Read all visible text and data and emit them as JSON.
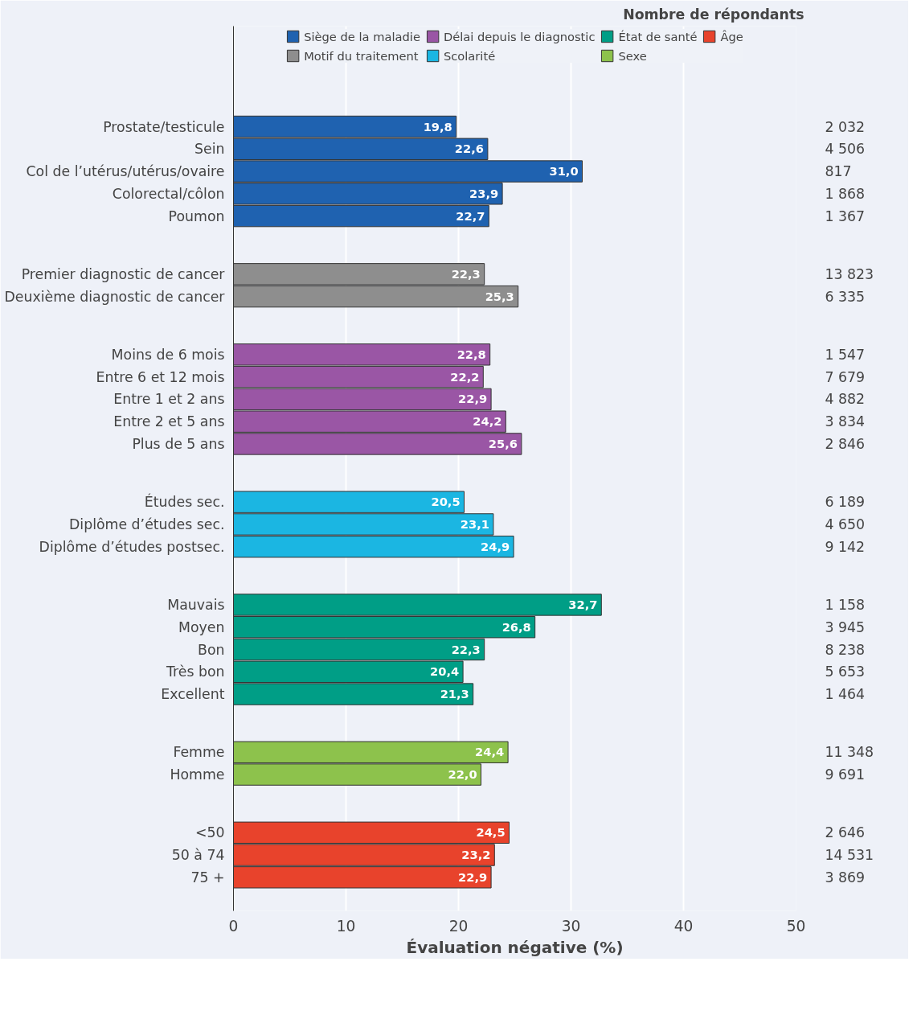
{
  "chart_data": {
    "type": "bar",
    "orientation": "horizontal",
    "xlabel": "Évaluation négative (%)",
    "categories": [
      "Prostate/testicule",
      "Sein",
      "Col de l’utérus/utérus/ovaire",
      "Colorectal/côlon",
      "Poumon",
      "Premier diagnostic de cancer",
      "Deuxième diagnostic de cancer",
      "Moins de 6 mois",
      "Entre 6 et 12 mois",
      "Entre 1 et 2 ans",
      "Entre 2 et 5 ans",
      "Plus de 5 ans",
      "Études sec.",
      "Diplôme d’études sec.",
      "Diplôme d’études postsec.",
      "Mauvais",
      "Moyen",
      "Bon",
      "Très bon",
      "Excellent",
      "Femme",
      "Homme",
      "<50",
      "50 à 74",
      "75 +"
    ],
    "series": [
      {
        "name": "Siège de la maladie",
        "color": "#1f62b0",
        "values": [
          19.8,
          22.6,
          31.0,
          23.9,
          22.7,
          null,
          null,
          null,
          null,
          null,
          null,
          null,
          null,
          null,
          null,
          null,
          null,
          null,
          null,
          null,
          null,
          null,
          null,
          null,
          null
        ],
        "value_labels": [
          "19,8",
          "22,6",
          "31,0",
          "23,9",
          "22,7",
          null,
          null,
          null,
          null,
          null,
          null,
          null,
          null,
          null,
          null,
          null,
          null,
          null,
          null,
          null,
          null,
          null,
          null,
          null,
          null
        ]
      },
      {
        "name": "Motif du traitement",
        "color": "#8e8e8e",
        "values": [
          null,
          null,
          null,
          null,
          null,
          22.3,
          25.3,
          null,
          null,
          null,
          null,
          null,
          null,
          null,
          null,
          null,
          null,
          null,
          null,
          null,
          null,
          null,
          null,
          null,
          null
        ],
        "value_labels": [
          null,
          null,
          null,
          null,
          null,
          "22,3",
          "25,3",
          null,
          null,
          null,
          null,
          null,
          null,
          null,
          null,
          null,
          null,
          null,
          null,
          null,
          null,
          null,
          null,
          null,
          null
        ]
      },
      {
        "name": "Délai depuis le diagnostic",
        "color": "#9a56a5",
        "values": [
          null,
          null,
          null,
          null,
          null,
          null,
          null,
          22.8,
          22.2,
          22.9,
          24.2,
          25.6,
          null,
          null,
          null,
          null,
          null,
          null,
          null,
          null,
          null,
          null,
          null,
          null,
          null
        ],
        "value_labels": [
          null,
          null,
          null,
          null,
          null,
          null,
          null,
          "22,8",
          "22,2",
          "22,9",
          "24,2",
          "25,6",
          null,
          null,
          null,
          null,
          null,
          null,
          null,
          null,
          null,
          null,
          null,
          null,
          null
        ]
      },
      {
        "name": "Scolarité",
        "color": "#1bb6e2",
        "values": [
          null,
          null,
          null,
          null,
          null,
          null,
          null,
          null,
          null,
          null,
          null,
          null,
          20.5,
          23.1,
          24.9,
          null,
          null,
          null,
          null,
          null,
          null,
          null,
          null,
          null,
          null
        ],
        "value_labels": [
          null,
          null,
          null,
          null,
          null,
          null,
          null,
          null,
          null,
          null,
          null,
          null,
          "20,5",
          "23,1",
          "24,9",
          null,
          null,
          null,
          null,
          null,
          null,
          null,
          null,
          null,
          null
        ]
      },
      {
        "name": "État de santé",
        "color": "#009e86",
        "values": [
          null,
          null,
          null,
          null,
          null,
          null,
          null,
          null,
          null,
          null,
          null,
          null,
          null,
          null,
          null,
          32.7,
          26.8,
          22.3,
          20.4,
          21.3,
          null,
          null,
          null,
          null,
          null
        ],
        "value_labels": [
          null,
          null,
          null,
          null,
          null,
          null,
          null,
          null,
          null,
          null,
          null,
          null,
          null,
          null,
          null,
          "32,7",
          "26,8",
          "22,3",
          "20,4",
          "21,3",
          null,
          null,
          null,
          null,
          null
        ]
      },
      {
        "name": "Sexe",
        "color": "#8dc24c",
        "values": [
          null,
          null,
          null,
          null,
          null,
          null,
          null,
          null,
          null,
          null,
          null,
          null,
          null,
          null,
          null,
          null,
          null,
          null,
          null,
          null,
          24.4,
          22.0,
          null,
          null,
          null
        ],
        "value_labels": [
          null,
          null,
          null,
          null,
          null,
          null,
          null,
          null,
          null,
          null,
          null,
          null,
          null,
          null,
          null,
          null,
          null,
          null,
          null,
          null,
          "24,4",
          "22,0",
          null,
          null,
          null
        ]
      },
      {
        "name": "Âge",
        "color": "#e8432c",
        "values": [
          null,
          null,
          null,
          null,
          null,
          null,
          null,
          null,
          null,
          null,
          null,
          null,
          null,
          null,
          null,
          null,
          null,
          null,
          null,
          null,
          null,
          null,
          24.5,
          23.2,
          22.9
        ],
        "value_labels": [
          null,
          null,
          null,
          null,
          null,
          null,
          null,
          null,
          null,
          null,
          null,
          null,
          null,
          null,
          null,
          null,
          null,
          null,
          null,
          null,
          null,
          null,
          "24,5",
          "23,2",
          "22,9"
        ]
      }
    ],
    "xlim": [
      0,
      50
    ],
    "xticks": [
      0,
      10,
      20,
      30,
      40,
      50
    ],
    "grid": "x",
    "legend": "top",
    "annotations": [
      "Nombre de répondants",
      "2 032",
      "4 506",
      "817",
      "1 868",
      "1 367",
      "13 823",
      "6 335",
      "1 547",
      "7 679",
      "4 882",
      "3 834",
      "2 846",
      "6 189",
      "4 650",
      "9 142",
      "1 158",
      "3 945",
      "8 238",
      "5 653",
      "1 464",
      "11 348",
      "9 691",
      "2 646",
      "14 531",
      "3 869"
    ]
  }
}
